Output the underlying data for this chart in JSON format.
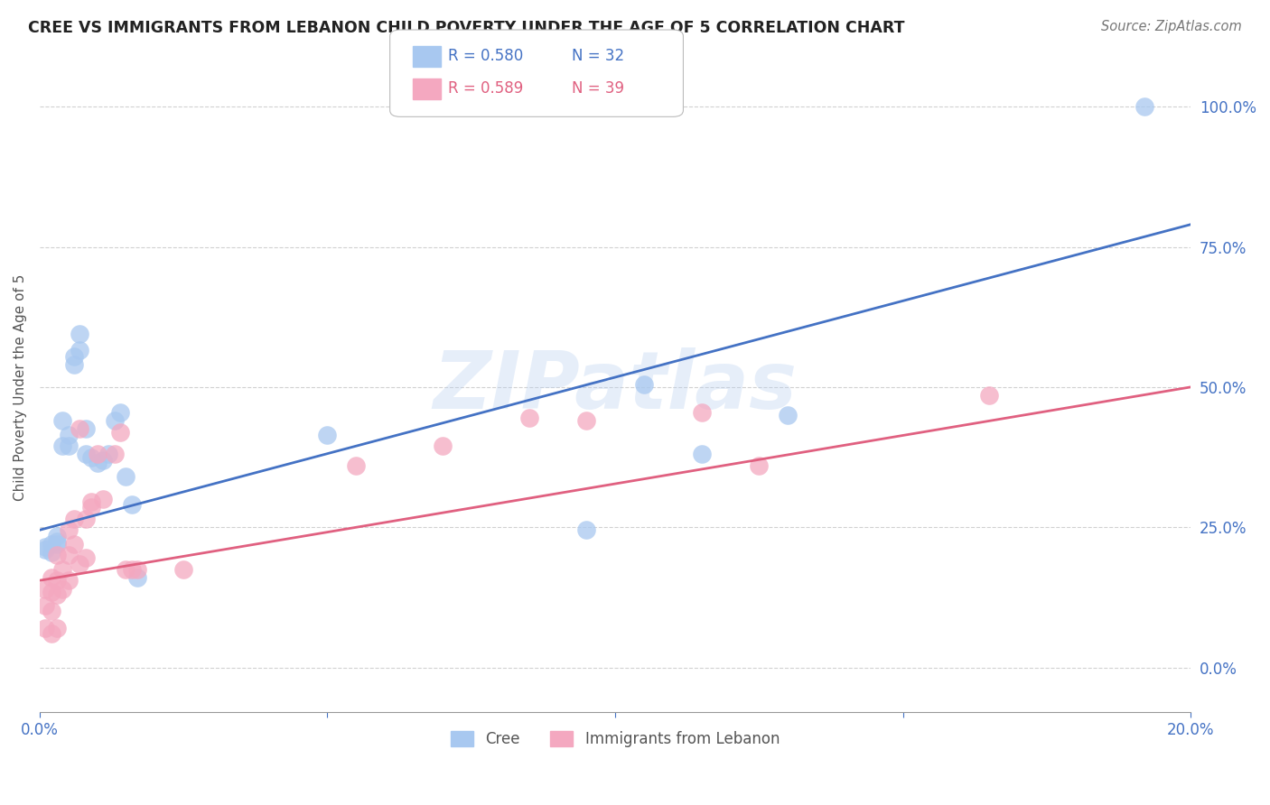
{
  "title": "CREE VS IMMIGRANTS FROM LEBANON CHILD POVERTY UNDER THE AGE OF 5 CORRELATION CHART",
  "source": "Source: ZipAtlas.com",
  "ylabel": "Child Poverty Under the Age of 5",
  "background_color": "#ffffff",
  "grid_color": "#cccccc",
  "title_color": "#222222",
  "source_color": "#777777",
  "axis_label_color": "#4472c4",
  "watermark": "ZIPatlas",
  "cree_color": "#a8c8f0",
  "lebanon_color": "#f4a8c0",
  "cree_line_color": "#4472c4",
  "lebanon_line_color": "#e06080",
  "xlim": [
    0.0,
    0.2
  ],
  "ylim": [
    -0.08,
    1.08
  ],
  "yticks": [
    0.0,
    0.25,
    0.5,
    0.75,
    1.0
  ],
  "ytick_labels": [
    "0.0%",
    "25.0%",
    "50.0%",
    "75.0%",
    "100.0%"
  ],
  "xticks": [
    0.0,
    0.05,
    0.1,
    0.15,
    0.2
  ],
  "xtick_labels": [
    "0.0%",
    "",
    "",
    "",
    "20.0%"
  ],
  "cree_x": [
    0.001,
    0.001,
    0.002,
    0.002,
    0.003,
    0.003,
    0.003,
    0.004,
    0.004,
    0.005,
    0.005,
    0.006,
    0.006,
    0.007,
    0.007,
    0.008,
    0.008,
    0.009,
    0.01,
    0.011,
    0.012,
    0.013,
    0.014,
    0.015,
    0.016,
    0.017,
    0.05,
    0.095,
    0.105,
    0.115,
    0.13,
    0.192
  ],
  "cree_y": [
    0.215,
    0.21,
    0.22,
    0.205,
    0.235,
    0.225,
    0.22,
    0.44,
    0.395,
    0.415,
    0.395,
    0.555,
    0.54,
    0.595,
    0.565,
    0.425,
    0.38,
    0.375,
    0.365,
    0.37,
    0.38,
    0.44,
    0.455,
    0.34,
    0.29,
    0.16,
    0.415,
    0.245,
    0.505,
    0.38,
    0.45,
    1.0
  ],
  "lebanon_x": [
    0.001,
    0.001,
    0.001,
    0.002,
    0.002,
    0.002,
    0.002,
    0.003,
    0.003,
    0.003,
    0.003,
    0.004,
    0.004,
    0.005,
    0.005,
    0.005,
    0.006,
    0.006,
    0.007,
    0.007,
    0.008,
    0.008,
    0.009,
    0.009,
    0.01,
    0.011,
    0.013,
    0.014,
    0.015,
    0.016,
    0.017,
    0.025,
    0.055,
    0.07,
    0.085,
    0.095,
    0.115,
    0.125,
    0.165
  ],
  "lebanon_y": [
    0.14,
    0.11,
    0.07,
    0.16,
    0.135,
    0.1,
    0.06,
    0.2,
    0.155,
    0.13,
    0.07,
    0.175,
    0.14,
    0.245,
    0.2,
    0.155,
    0.265,
    0.22,
    0.425,
    0.185,
    0.265,
    0.195,
    0.295,
    0.285,
    0.38,
    0.3,
    0.38,
    0.42,
    0.175,
    0.175,
    0.175,
    0.175,
    0.36,
    0.395,
    0.445,
    0.44,
    0.455,
    0.36,
    0.485
  ]
}
